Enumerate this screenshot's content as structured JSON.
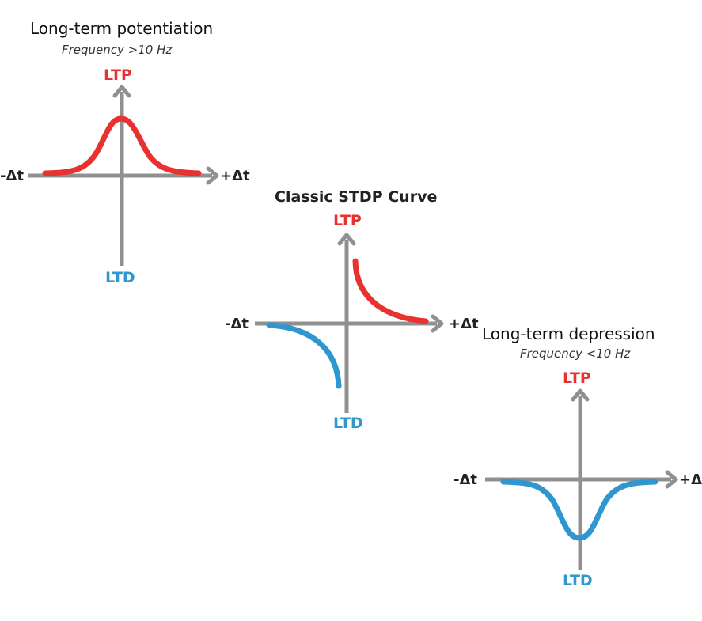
{
  "colors": {
    "ltp": "#e8322f",
    "ltd": "#2f97d0",
    "axis": "#909090"
  },
  "panels": [
    {
      "id": "ltp-panel",
      "title": "Long-term potentiation",
      "subtitle": "Frequency >10 Hz",
      "y_top_label": "LTP",
      "y_bottom_label": "LTD",
      "x_left_label": "-Δt",
      "x_right_label": "+Δt",
      "curve": "positive-bell"
    },
    {
      "id": "stdp-panel",
      "title": "Classic STDP Curve",
      "y_top_label": "LTP",
      "y_bottom_label": "LTD",
      "x_left_label": "-Δt",
      "x_right_label": "+Δt",
      "curve": "stdp"
    },
    {
      "id": "ltd-panel",
      "title": "Long-term depression",
      "subtitle": "Frequency <10 Hz",
      "y_top_label": "LTP",
      "y_bottom_label": "LTD",
      "x_left_label": "-Δt",
      "x_right_label": "+Δt",
      "curve": "negative-bell"
    }
  ]
}
